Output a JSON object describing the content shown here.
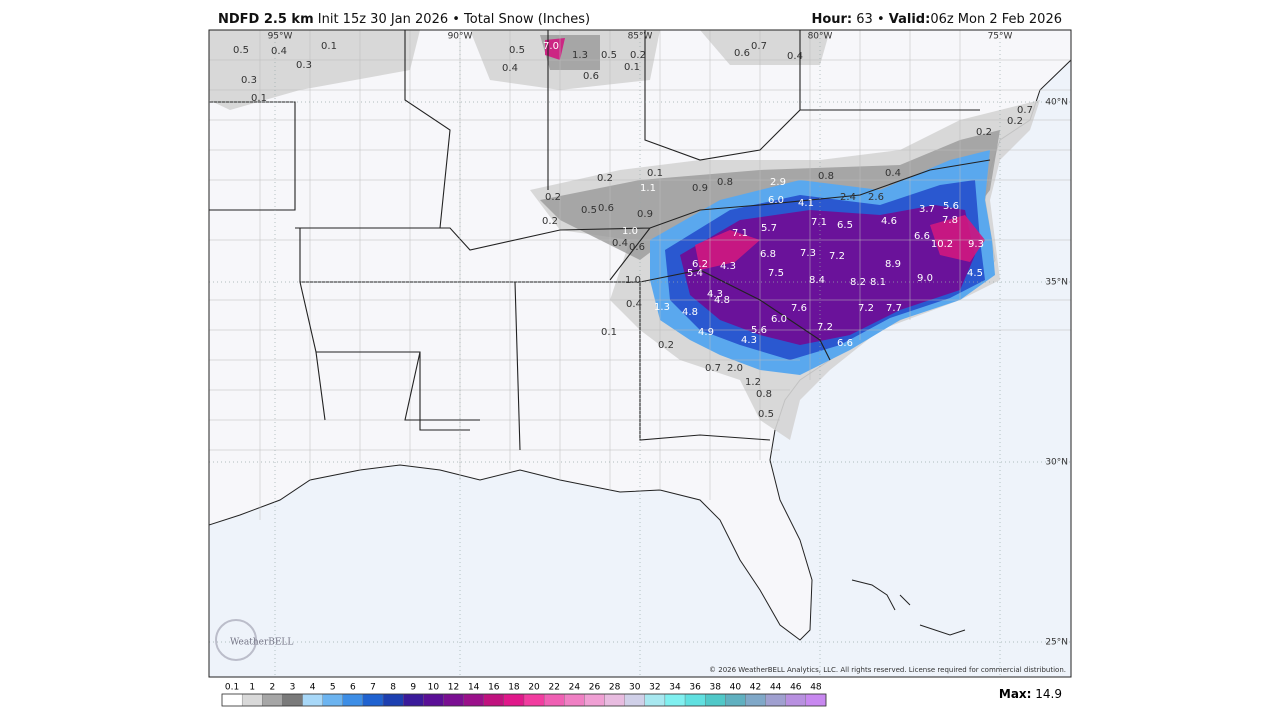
{
  "header": {
    "model": "NDFD 2.5 km",
    "init": "Init 15z 30 Jan 2026 • Total Snow (Inches)",
    "hour_label": "Hour:",
    "hour": "63 •",
    "valid_label": "Valid:",
    "valid": "06z Mon 2 Feb 2026"
  },
  "map": {
    "longitudes": [
      "95°W",
      "90°W",
      "85°W",
      "80°W",
      "75°W"
    ],
    "latitudes": [
      "40°N",
      "35°N",
      "30°N",
      "25°N"
    ],
    "snow_labels": [
      "0.5",
      "0.4",
      "0.1",
      "0.3",
      "0.3",
      "0.1",
      "0.5",
      "0.4",
      "7.0",
      "1.3",
      "0.5",
      "0.2",
      "0.1",
      "0.6",
      "0.6",
      "0.7",
      "0.4",
      "0.7",
      "0.2",
      "0.2",
      "0.1",
      "0.2",
      "1.1",
      "0.9",
      "0.8",
      "2.9",
      "0.8",
      "0.4",
      "0.2",
      "0.5",
      "0.6",
      "0.9",
      "0.2",
      "6.0",
      "4.1",
      "7.1",
      "6.5",
      "2.6",
      "2.4",
      "4.6",
      "3.7",
      "5.6",
      "7.8",
      "6.6",
      "10.2",
      "9.3",
      "4.5",
      "7.1",
      "5.7",
      "1.0",
      "0.4",
      "0.6",
      "6.2",
      "5.4",
      "4.3",
      "6.8",
      "7.3",
      "7.2",
      "7.5",
      "8.4",
      "8.2",
      "8.1",
      "8.9",
      "9.0",
      "1.0",
      "0.4",
      "1.3",
      "4.8",
      "4.3",
      "4.8",
      "0.1",
      "4.9",
      "4.3",
      "5.6",
      "6.0",
      "7.6",
      "7.2",
      "7.2",
      "7.7",
      "6.6",
      "0.2",
      "0.7",
      "2.0",
      "1.2",
      "0.8",
      "0.5"
    ],
    "logo": "WeatherBELL",
    "copyright": "© 2026 WeatherBELL Analytics, LLC. All rights reserved. License required for commercial distribution."
  },
  "colorbar": {
    "ticks": [
      "0.1",
      "1",
      "2",
      "3",
      "4",
      "5",
      "6",
      "7",
      "8",
      "9",
      "10",
      "12",
      "14",
      "16",
      "18",
      "20",
      "22",
      "24",
      "26",
      "28",
      "30",
      "32",
      "34",
      "36",
      "38",
      "40",
      "42",
      "44",
      "46",
      "48"
    ],
    "colors": [
      "#ffffff",
      "#d9d9d9",
      "#a6a6a6",
      "#7a7a7a",
      "#a8d8f8",
      "#6cb4f0",
      "#3d8ee6",
      "#1f62d0",
      "#1c3fb0",
      "#3a1a9a",
      "#5a0f96",
      "#7a0f92",
      "#9a108a",
      "#c0127e",
      "#e0188a",
      "#f23ca0",
      "#f060b4",
      "#f080c4",
      "#f0a0d4",
      "#e8bce0",
      "#d0d0e8",
      "#a8e8f0",
      "#80f0f0",
      "#60e0e0",
      "#50c8c8",
      "#60b0c0",
      "#80a8c8",
      "#a0a0d0",
      "#b890e0",
      "#c888f0"
    ]
  },
  "max": {
    "label": "Max:",
    "value": "14.9"
  }
}
